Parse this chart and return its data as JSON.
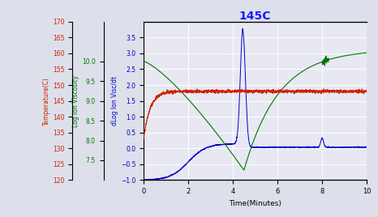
{
  "title": "145C",
  "title_color": "#1a1aff",
  "xlabel": "Time(Minutes)",
  "ylabel_left1": "dLog Ion Visc/dt",
  "ylabel_left2": "Log Ion Viscosity",
  "ylabel_left3": "Temperature(C)",
  "xlim": [
    0,
    10
  ],
  "ylim_blue": [
    -1.0,
    4.0
  ],
  "ylim_green": [
    7.0,
    11.0
  ],
  "ylim_red": [
    120,
    170
  ],
  "xticks": [
    0,
    2,
    4,
    6,
    8,
    10
  ],
  "yticks_blue": [
    -1.0,
    -0.5,
    0.0,
    0.5,
    1.0,
    1.5,
    2.0,
    2.5,
    3.0,
    3.5
  ],
  "yticks_green": [
    7.5,
    8.0,
    8.5,
    9.0,
    9.5,
    10.0
  ],
  "yticks_red": [
    120,
    125,
    130,
    135,
    140,
    145,
    150,
    155,
    160,
    165,
    170
  ],
  "bg_color": "#dde0ea",
  "plot_bg_color": "#e8e8f2",
  "grid_color": "#ffffff",
  "line_blue": "#0000cc",
  "line_green": "#007700",
  "line_red": "#cc2200"
}
